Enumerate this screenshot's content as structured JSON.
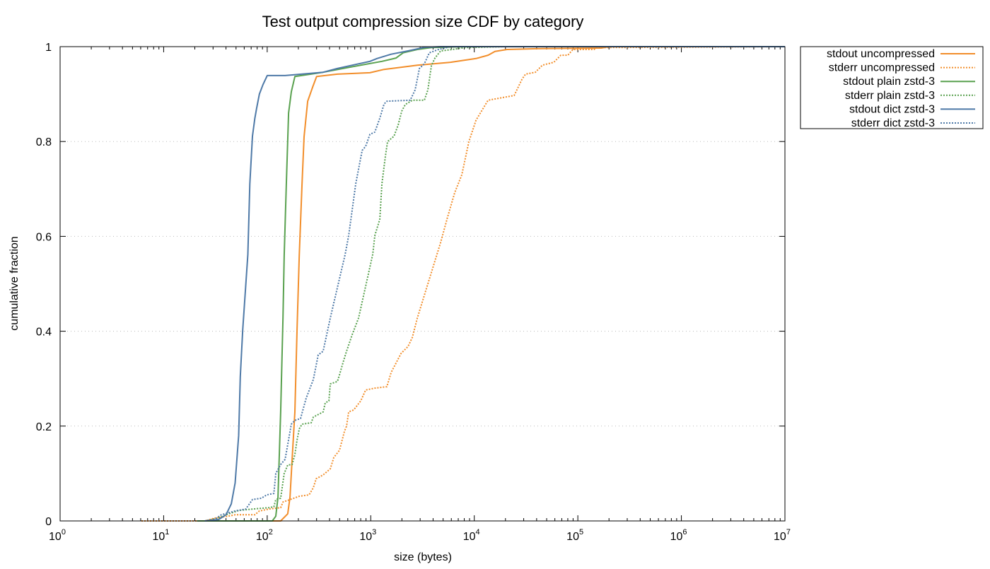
{
  "chart_data": {
    "type": "line",
    "title": "Test output compression size CDF by category",
    "xlabel": "size (bytes)",
    "ylabel": "cumulative fraction",
    "xscale": "log",
    "xlim": [
      1,
      10000000
    ],
    "ylim": [
      0,
      1
    ],
    "grid": "horizontal dotted",
    "legend_position": "outside-top-right",
    "x_ticks": [
      {
        "value": 1,
        "base": "10",
        "exp": "0"
      },
      {
        "value": 10,
        "base": "10",
        "exp": "1"
      },
      {
        "value": 100,
        "base": "10",
        "exp": "2"
      },
      {
        "value": 1000,
        "base": "10",
        "exp": "3"
      },
      {
        "value": 10000,
        "base": "10",
        "exp": "4"
      },
      {
        "value": 100000,
        "base": "10",
        "exp": "5"
      },
      {
        "value": 1000000,
        "base": "10",
        "exp": "6"
      },
      {
        "value": 10000000,
        "base": "10",
        "exp": "7"
      }
    ],
    "y_ticks": [
      {
        "value": 0,
        "label": "0"
      },
      {
        "value": 0.2,
        "label": "0.2"
      },
      {
        "value": 0.4,
        "label": "0.4"
      },
      {
        "value": 0.6,
        "label": "0.6"
      },
      {
        "value": 0.8,
        "label": "0.8"
      },
      {
        "value": 1,
        "label": "1"
      }
    ],
    "series": [
      {
        "name": "stdout uncompressed",
        "color": "#f28e2b",
        "style": "solid",
        "points": [
          [
            21,
            0
          ],
          [
            135,
            0
          ],
          [
            158,
            0.015
          ],
          [
            166,
            0.05
          ],
          [
            174,
            0.13
          ],
          [
            185,
            0.23
          ],
          [
            194,
            0.4
          ],
          [
            204,
            0.56
          ],
          [
            217,
            0.71
          ],
          [
            227,
            0.81
          ],
          [
            246,
            0.885
          ],
          [
            275,
            0.915
          ],
          [
            300,
            0.937
          ],
          [
            476,
            0.942
          ],
          [
            982,
            0.945
          ],
          [
            1344,
            0.952
          ],
          [
            2818,
            0.961
          ],
          [
            5890,
            0.967
          ],
          [
            10400,
            0.975
          ],
          [
            13580,
            0.982
          ],
          [
            15850,
            0.99
          ],
          [
            20750,
            0.994
          ],
          [
            45500,
            0.996
          ],
          [
            168000,
            0.997
          ],
          [
            200000,
            1
          ],
          [
            10000000,
            1
          ]
        ]
      },
      {
        "name": "stderr uncompressed",
        "color": "#f28e2b",
        "style": "dotted",
        "points": [
          [
            6.1,
            0
          ],
          [
            25,
            0
          ],
          [
            31,
            0.006
          ],
          [
            42,
            0.01
          ],
          [
            49,
            0.013
          ],
          [
            76,
            0.013
          ],
          [
            84,
            0.021
          ],
          [
            104,
            0.025
          ],
          [
            135,
            0.028
          ],
          [
            142,
            0.04
          ],
          [
            166,
            0.045
          ],
          [
            204,
            0.052
          ],
          [
            254,
            0.055
          ],
          [
            279,
            0.07
          ],
          [
            297,
            0.089
          ],
          [
            347,
            0.097
          ],
          [
            407,
            0.11
          ],
          [
            440,
            0.134
          ],
          [
            499,
            0.149
          ],
          [
            557,
            0.189
          ],
          [
            584,
            0.2
          ],
          [
            612,
            0.23
          ],
          [
            684,
            0.234
          ],
          [
            800,
            0.253
          ],
          [
            893,
            0.276
          ],
          [
            1096,
            0.28
          ],
          [
            1432,
            0.283
          ],
          [
            1574,
            0.313
          ],
          [
            1960,
            0.353
          ],
          [
            2296,
            0.368
          ],
          [
            2522,
            0.387
          ],
          [
            2818,
            0.428
          ],
          [
            4730,
            0.587
          ],
          [
            5530,
            0.641
          ],
          [
            6470,
            0.692
          ],
          [
            7580,
            0.73
          ],
          [
            8870,
            0.8
          ],
          [
            10400,
            0.845
          ],
          [
            13580,
            0.887
          ],
          [
            24270,
            0.897
          ],
          [
            28860,
            0.931
          ],
          [
            31220,
            0.942
          ],
          [
            38900,
            0.946
          ],
          [
            45500,
            0.961
          ],
          [
            58600,
            0.967
          ],
          [
            68550,
            0.982
          ],
          [
            80200,
            0.982
          ],
          [
            89600,
            0.994
          ],
          [
            143500,
            0.994
          ],
          [
            150600,
            0.998
          ],
          [
            8500000,
            1
          ]
        ]
      },
      {
        "name": "stdout plain zstd-3",
        "color": "#59a14f",
        "style": "solid",
        "points": [
          [
            21,
            0
          ],
          [
            112,
            0
          ],
          [
            121,
            0.01
          ],
          [
            127,
            0.05
          ],
          [
            135,
            0.23
          ],
          [
            142,
            0.43
          ],
          [
            146,
            0.56
          ],
          [
            153,
            0.71
          ],
          [
            161,
            0.86
          ],
          [
            171,
            0.905
          ],
          [
            185,
            0.937
          ],
          [
            347,
            0.946
          ],
          [
            763,
            0.96
          ],
          [
            1282,
            0.969
          ],
          [
            1757,
            0.976
          ],
          [
            2056,
            0.987
          ],
          [
            2818,
            0.994
          ],
          [
            3856,
            0.998
          ],
          [
            8070,
            1
          ],
          [
            10000000,
            1
          ]
        ]
      },
      {
        "name": "stderr plain zstd-3",
        "color": "#59a14f",
        "style": "dotted",
        "points": [
          [
            25,
            0
          ],
          [
            34,
            0.006
          ],
          [
            40,
            0.013
          ],
          [
            53,
            0.022
          ],
          [
            72,
            0.025
          ],
          [
            104,
            0.028
          ],
          [
            116,
            0.03
          ],
          [
            121,
            0.045
          ],
          [
            135,
            0.048
          ],
          [
            146,
            0.1
          ],
          [
            158,
            0.118
          ],
          [
            174,
            0.119
          ],
          [
            185,
            0.14
          ],
          [
            194,
            0.17
          ],
          [
            204,
            0.194
          ],
          [
            217,
            0.204
          ],
          [
            266,
            0.207
          ],
          [
            279,
            0.219
          ],
          [
            347,
            0.23
          ],
          [
            364,
            0.249
          ],
          [
            394,
            0.253
          ],
          [
            407,
            0.289
          ],
          [
            476,
            0.294
          ],
          [
            499,
            0.308
          ],
          [
            540,
            0.334
          ],
          [
            584,
            0.358
          ],
          [
            662,
            0.393
          ],
          [
            763,
            0.428
          ],
          [
            1045,
            0.562
          ],
          [
            1096,
            0.602
          ],
          [
            1223,
            0.636
          ],
          [
            1282,
            0.711
          ],
          [
            1387,
            0.77
          ],
          [
            1455,
            0.8
          ],
          [
            1675,
            0.811
          ],
          [
            1841,
            0.835
          ],
          [
            1991,
            0.864
          ],
          [
            2154,
            0.878
          ],
          [
            2522,
            0.887
          ],
          [
            3296,
            0.887
          ],
          [
            3565,
            0.909
          ],
          [
            3856,
            0.96
          ],
          [
            4170,
            0.976
          ],
          [
            4730,
            0.991
          ],
          [
            6180,
            0.994
          ],
          [
            8070,
            0.998
          ],
          [
            20000,
            1
          ],
          [
            10000000,
            1
          ]
        ]
      },
      {
        "name": "stdout dict zstd-3",
        "color": "#4e79a7",
        "style": "solid",
        "points": [
          [
            25,
            0
          ],
          [
            34,
            0.003
          ],
          [
            40,
            0.013
          ],
          [
            45,
            0.036
          ],
          [
            49,
            0.08
          ],
          [
            53,
            0.18
          ],
          [
            55,
            0.304
          ],
          [
            58,
            0.402
          ],
          [
            65,
            0.562
          ],
          [
            68,
            0.711
          ],
          [
            72,
            0.811
          ],
          [
            76,
            0.849
          ],
          [
            79,
            0.87
          ],
          [
            84,
            0.9
          ],
          [
            91,
            0.92
          ],
          [
            100,
            0.939
          ],
          [
            149,
            0.939
          ],
          [
            347,
            0.946
          ],
          [
            476,
            0.954
          ],
          [
            982,
            0.969
          ],
          [
            1148,
            0.975
          ],
          [
            1574,
            0.984
          ],
          [
            2296,
            0.991
          ],
          [
            3296,
            0.9985
          ],
          [
            4730,
            1
          ],
          [
            10000000,
            1
          ]
        ]
      },
      {
        "name": "stderr dict zstd-3",
        "color": "#4e79a7",
        "style": "dotted",
        "points": [
          [
            25,
            0
          ],
          [
            31,
            0.003
          ],
          [
            36,
            0.013
          ],
          [
            49,
            0.021
          ],
          [
            62,
            0.025
          ],
          [
            72,
            0.045
          ],
          [
            88,
            0.048
          ],
          [
            99,
            0.055
          ],
          [
            116,
            0.058
          ],
          [
            121,
            0.1
          ],
          [
            135,
            0.119
          ],
          [
            149,
            0.13
          ],
          [
            171,
            0.204
          ],
          [
            185,
            0.212
          ],
          [
            210,
            0.216
          ],
          [
            238,
            0.259
          ],
          [
            279,
            0.298
          ],
          [
            311,
            0.35
          ],
          [
            347,
            0.358
          ],
          [
            364,
            0.379
          ],
          [
            407,
            0.428
          ],
          [
            566,
            0.562
          ],
          [
            612,
            0.602
          ],
          [
            717,
            0.711
          ],
          [
            826,
            0.781
          ],
          [
            893,
            0.79
          ],
          [
            982,
            0.815
          ],
          [
            1096,
            0.82
          ],
          [
            1223,
            0.849
          ],
          [
            1344,
            0.879
          ],
          [
            1432,
            0.885
          ],
          [
            2405,
            0.887
          ],
          [
            2685,
            0.909
          ],
          [
            2950,
            0.954
          ],
          [
            3296,
            0.964
          ],
          [
            3680,
            0.987
          ],
          [
            4510,
            0.994
          ],
          [
            5890,
            1
          ],
          [
            10000000,
            1
          ]
        ]
      }
    ]
  }
}
